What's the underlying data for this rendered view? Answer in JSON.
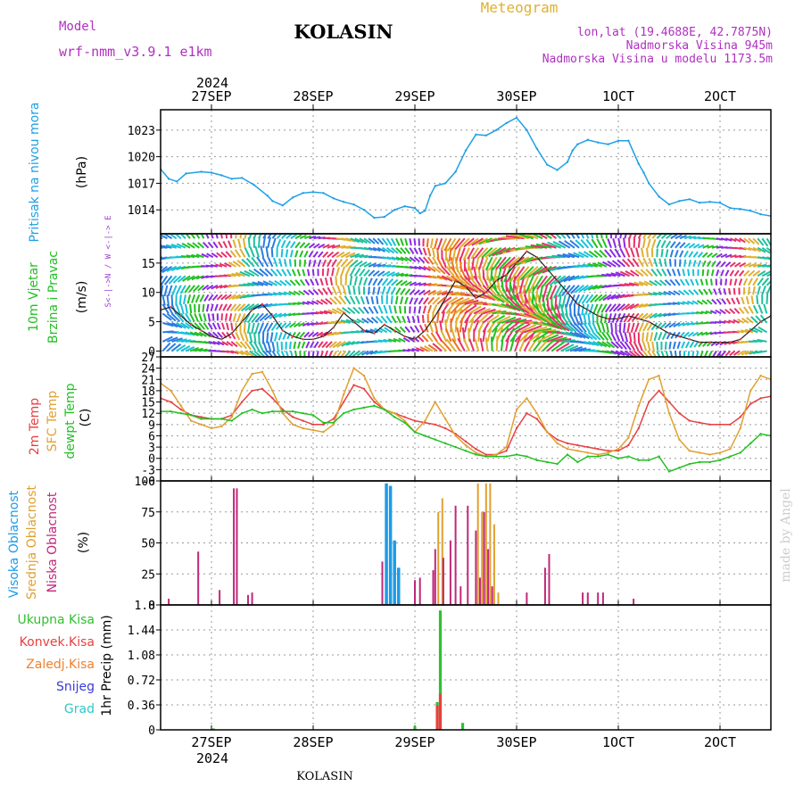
{
  "header": {
    "model_label": "Model",
    "model_name": "wrf-nmm_v3.9.1 e1km",
    "station": "KOLASIN",
    "product": "Meteogram",
    "lonlat": "lon,lat (19.4688E, 42.7875N)",
    "elevation": "Nadmorska Visina 945m",
    "model_elevation": "Nadmorska Visina u modelu 1173.5m",
    "year": "2024",
    "footer_station": "KOLASIN",
    "credit": "made by Angel"
  },
  "colors": {
    "pressure": "#1ea0e6",
    "temp2m": "#e84040",
    "sfc_temp": "#e0a030",
    "dewpoint": "#22c022",
    "cloud_high": "#1e9be6",
    "cloud_mid": "#e0a030",
    "cloud_low": "#c0287a",
    "precip_total": "#30c030",
    "precip_conv": "#e84040",
    "precip_frozen": "#f08030",
    "snow": "#3a3ad8",
    "hail": "#30c8c8",
    "title": "#000000",
    "meta": "#b030c0"
  },
  "chart_data": [
    {
      "type": "line",
      "id": "pressure",
      "ylabel_lines": [
        "Pritisak na nivou mora",
        "(hPa)"
      ],
      "ylim": [
        1011.3,
        1025.3
      ],
      "yticks": [
        1014,
        1017,
        1020,
        1023
      ],
      "grid": true,
      "xlim": [
        -0.5,
        5.5
      ],
      "xticks": [
        0,
        1,
        2,
        3,
        4,
        5
      ],
      "xtick_labels": [
        "27SEP",
        "28SEP",
        "29SEP",
        "30SEP",
        "1OCT",
        "2OCT"
      ],
      "series": [
        {
          "key": "pressure",
          "x": [
            -0.5,
            -0.42,
            -0.34,
            -0.25,
            -0.1,
            0,
            0.1,
            0.2,
            0.3,
            0.42,
            0.55,
            0.6,
            0.7,
            0.8,
            0.9,
            1.0,
            1.1,
            1.2,
            1.3,
            1.4,
            1.5,
            1.6,
            1.7,
            1.8,
            1.9,
            2.0,
            2.05,
            2.1,
            2.15,
            2.2,
            2.3,
            2.4,
            2.5,
            2.6,
            2.7,
            2.8,
            2.9,
            3.0,
            3.1,
            3.2,
            3.3,
            3.4,
            3.5,
            3.55,
            3.6,
            3.7,
            3.8,
            3.9,
            4.0,
            4.1,
            4.2,
            4.25,
            4.3,
            4.4,
            4.5,
            4.6,
            4.7,
            4.8,
            4.9,
            5.0,
            5.1,
            5.2,
            5.3,
            5.4,
            5.5
          ],
          "values": [
            1018.6,
            1017.5,
            1017.2,
            1018.1,
            1018.3,
            1018.2,
            1017.9,
            1017.5,
            1017.6,
            1016.8,
            1015.6,
            1015.0,
            1014.5,
            1015.4,
            1015.9,
            1016.0,
            1015.9,
            1015.3,
            1014.9,
            1014.6,
            1014.0,
            1013.1,
            1013.2,
            1014.0,
            1014.4,
            1014.2,
            1013.6,
            1013.9,
            1015.6,
            1016.7,
            1017.0,
            1018.3,
            1020.7,
            1022.5,
            1022.4,
            1023.0,
            1023.8,
            1024.4,
            1023.0,
            1020.9,
            1019.1,
            1018.5,
            1019.4,
            1020.7,
            1021.4,
            1021.9,
            1021.6,
            1021.4,
            1021.8,
            1021.8,
            1019.2,
            1018.2,
            1017.0,
            1015.5,
            1014.6,
            1015.0,
            1015.2,
            1014.8,
            1014.9,
            1014.8,
            1014.2,
            1014.1,
            1013.9,
            1013.5,
            1013.3
          ]
        }
      ]
    },
    {
      "type": "line",
      "id": "wind",
      "ylabel_lines": [
        "10m Vjetar",
        "Brzina i Pravac",
        "(m/s)"
      ],
      "compass_label": "S<-|->N / W <-|-> E",
      "ylim": [
        -1,
        20
      ],
      "yticks": [
        0,
        5,
        10,
        15
      ],
      "grid": true,
      "xlim": [
        -0.5,
        5.5
      ],
      "series": [
        {
          "key": "wind_speed",
          "x": [
            -0.5,
            -0.4,
            -0.3,
            -0.2,
            -0.1,
            0,
            0.1,
            0.2,
            0.3,
            0.4,
            0.5,
            0.6,
            0.7,
            0.8,
            0.9,
            1.0,
            1.1,
            1.2,
            1.3,
            1.4,
            1.5,
            1.6,
            1.7,
            1.8,
            1.9,
            2.0,
            2.1,
            2.2,
            2.3,
            2.4,
            2.5,
            2.6,
            2.7,
            2.8,
            2.9,
            3.0,
            3.1,
            3.2,
            3.3,
            3.4,
            3.5,
            3.6,
            3.7,
            3.8,
            3.9,
            4.0,
            4.1,
            4.2,
            4.3,
            4.4,
            4.5,
            4.6,
            4.7,
            4.8,
            4.9,
            5.0,
            5.1,
            5.2,
            5.3,
            5.4,
            5.5
          ],
          "values": [
            7.0,
            7.5,
            6.0,
            4.5,
            3.5,
            2.5,
            2.0,
            3.0,
            5.0,
            7.0,
            8.0,
            6.0,
            3.5,
            2.5,
            2.0,
            2.0,
            2.5,
            4.0,
            6.5,
            5.0,
            3.5,
            3.0,
            4.5,
            3.5,
            2.5,
            2.0,
            3.5,
            6.0,
            9.0,
            12.0,
            11.0,
            9.0,
            10.0,
            12.0,
            13.0,
            15.0,
            17.0,
            16.0,
            14.0,
            12.0,
            10.0,
            8.0,
            7.0,
            6.0,
            5.5,
            5.5,
            6.0,
            5.5,
            5.0,
            4.0,
            3.0,
            2.5,
            2.0,
            1.5,
            1.5,
            1.5,
            1.5,
            2.0,
            3.5,
            5.0,
            6.0
          ]
        }
      ]
    },
    {
      "type": "line",
      "id": "temperature",
      "ylabel_lines": [
        "2m Temp",
        "SFC Temp",
        "dewpt Temp",
        "(C)"
      ],
      "ylim": [
        -6,
        27
      ],
      "yticks": [
        -6,
        -3,
        0,
        3,
        6,
        9,
        12,
        15,
        18,
        21,
        24,
        27
      ],
      "grid": true,
      "xlim": [
        -0.5,
        5.5
      ],
      "series": [
        {
          "key": "temp2m",
          "name": "2m Temp",
          "x": [
            -0.5,
            -0.4,
            -0.3,
            -0.2,
            -0.1,
            0,
            0.1,
            0.2,
            0.3,
            0.4,
            0.5,
            0.6,
            0.7,
            0.8,
            0.9,
            1.0,
            1.1,
            1.2,
            1.3,
            1.4,
            1.5,
            1.6,
            1.7,
            1.8,
            1.9,
            2.0,
            2.1,
            2.2,
            2.3,
            2.4,
            2.5,
            2.6,
            2.7,
            2.8,
            2.9,
            3.0,
            3.1,
            3.2,
            3.3,
            3.4,
            3.5,
            3.6,
            3.7,
            3.8,
            3.9,
            4.0,
            4.1,
            4.2,
            4.3,
            4.4,
            4.5,
            4.6,
            4.7,
            4.8,
            4.9,
            5.0,
            5.1,
            5.2,
            5.3,
            5.4,
            5.5
          ],
          "values": [
            16.0,
            15.0,
            13.0,
            11.5,
            11.0,
            10.5,
            10.5,
            11.5,
            15.0,
            18.0,
            18.5,
            16.0,
            13.0,
            11.0,
            10.0,
            9.0,
            9.0,
            10.5,
            15.0,
            19.5,
            18.5,
            15.0,
            13.0,
            12.0,
            11.0,
            10.0,
            9.5,
            9.0,
            8.0,
            6.5,
            4.5,
            2.5,
            1.0,
            1.0,
            2.0,
            8.0,
            12.0,
            10.5,
            7.0,
            5.0,
            4.0,
            3.5,
            3.0,
            2.5,
            2.0,
            2.0,
            3.5,
            8.0,
            15.0,
            18.0,
            15.0,
            12.0,
            10.0,
            9.5,
            9.0,
            9.0,
            9.0,
            11.0,
            14.5,
            16.0,
            16.5
          ]
        },
        {
          "key": "sfc_temp",
          "name": "SFC Temp",
          "x": [
            -0.5,
            -0.4,
            -0.3,
            -0.2,
            -0.1,
            0,
            0.1,
            0.2,
            0.3,
            0.4,
            0.5,
            0.6,
            0.7,
            0.8,
            0.9,
            1.0,
            1.1,
            1.2,
            1.3,
            1.4,
            1.5,
            1.6,
            1.7,
            1.8,
            1.9,
            2.0,
            2.1,
            2.2,
            2.3,
            2.4,
            2.5,
            2.6,
            2.7,
            2.8,
            2.9,
            3.0,
            3.1,
            3.2,
            3.3,
            3.4,
            3.5,
            3.6,
            3.7,
            3.8,
            3.9,
            4.0,
            4.1,
            4.2,
            4.3,
            4.4,
            4.5,
            4.6,
            4.7,
            4.8,
            4.9,
            5.0,
            5.1,
            5.2,
            5.3,
            5.4,
            5.5
          ],
          "values": [
            20.0,
            18.0,
            14.0,
            10.0,
            9.0,
            8.0,
            8.5,
            11.0,
            18.0,
            22.5,
            23.0,
            18.0,
            12.0,
            9.0,
            8.0,
            7.5,
            7.0,
            9.0,
            17.0,
            24.0,
            22.0,
            16.0,
            13.0,
            12.0,
            10.0,
            7.0,
            10.0,
            15.0,
            10.5,
            6.0,
            3.5,
            1.5,
            0.5,
            1.0,
            3.0,
            13.0,
            16.0,
            12.0,
            7.0,
            4.0,
            2.5,
            2.0,
            1.5,
            1.0,
            1.5,
            2.5,
            5.5,
            14.0,
            21.0,
            22.0,
            12.0,
            5.0,
            2.0,
            1.5,
            1.0,
            1.5,
            2.5,
            8.0,
            18.0,
            22.0,
            21.0
          ]
        },
        {
          "key": "dewpoint",
          "name": "dewpt Temp",
          "x": [
            -0.5,
            -0.4,
            -0.3,
            -0.2,
            -0.1,
            0,
            0.1,
            0.2,
            0.3,
            0.4,
            0.5,
            0.6,
            0.7,
            0.8,
            0.9,
            1.0,
            1.1,
            1.2,
            1.3,
            1.4,
            1.5,
            1.6,
            1.7,
            1.8,
            1.9,
            2.0,
            2.1,
            2.2,
            2.3,
            2.4,
            2.5,
            2.6,
            2.7,
            2.8,
            2.9,
            3.0,
            3.1,
            3.2,
            3.3,
            3.4,
            3.5,
            3.6,
            3.7,
            3.8,
            3.9,
            4.0,
            4.1,
            4.2,
            4.3,
            4.4,
            4.5,
            4.6,
            4.7,
            4.8,
            4.9,
            5.0,
            5.1,
            5.2,
            5.3,
            5.4,
            5.5
          ],
          "values": [
            12.5,
            12.5,
            12.0,
            11.5,
            10.5,
            10.5,
            10.5,
            10.0,
            12.0,
            13.0,
            12.0,
            12.5,
            12.5,
            12.5,
            12.0,
            11.5,
            9.5,
            9.5,
            12.0,
            13.0,
            13.5,
            14.0,
            13.0,
            11.0,
            9.5,
            7.0,
            6.0,
            5.0,
            4.0,
            3.0,
            2.0,
            1.0,
            0.5,
            0.5,
            0.5,
            1.0,
            0.5,
            -0.5,
            -1.0,
            -1.5,
            1.0,
            -1.0,
            0.5,
            0.5,
            1.0,
            0.0,
            0.5,
            -0.5,
            -0.5,
            0.5,
            -3.5,
            -2.5,
            -1.5,
            -1.0,
            -1.0,
            -0.5,
            0.5,
            1.5,
            4.0,
            6.5,
            6.0
          ]
        }
      ]
    },
    {
      "type": "bar",
      "id": "clouds",
      "ylabel_lines": [
        "Visoka Oblacnost",
        "Srednja Oblacnost",
        "Niska Oblacnost",
        "(%)"
      ],
      "ylim": [
        0,
        100
      ],
      "yticks": [
        0,
        25,
        50,
        75,
        100
      ],
      "grid": true,
      "xlim": [
        -0.5,
        5.5
      ],
      "series": [
        {
          "key": "cloud_high",
          "name": "Visoka Oblacnost",
          "x": [
            1.72,
            1.76,
            1.8,
            1.84
          ],
          "values": [
            98,
            96,
            52,
            30
          ]
        },
        {
          "key": "cloud_mid",
          "name": "Srednja Oblacnost",
          "x": [
            2.23,
            2.27,
            2.62,
            2.66,
            2.7,
            2.74,
            2.78,
            2.82
          ],
          "values": [
            75,
            86,
            98,
            75,
            98,
            98,
            65,
            10
          ]
        },
        {
          "key": "cloud_low",
          "name": "Niska Oblacnost",
          "x": [
            -0.42,
            -0.13,
            0.08,
            0.22,
            0.25,
            0.36,
            0.4,
            1.68,
            2.0,
            2.05,
            2.18,
            2.2,
            2.28,
            2.35,
            2.4,
            2.45,
            2.52,
            2.6,
            2.64,
            2.68,
            2.72,
            2.76,
            3.1,
            3.28,
            3.32,
            3.65,
            3.7,
            3.8,
            3.85,
            4.15
          ],
          "values": [
            5,
            43,
            12,
            94,
            94,
            8,
            10,
            35,
            20,
            22,
            28,
            45,
            38,
            52,
            80,
            15,
            80,
            60,
            22,
            75,
            45,
            15,
            10,
            30,
            41,
            10,
            10,
            10,
            10,
            5
          ]
        }
      ]
    },
    {
      "type": "bar",
      "id": "precip",
      "ylabel_lines": [
        "1hr Precip (mm)"
      ],
      "legend": [
        "Ukupna Kisa",
        "Konvek.Kisa",
        "Zaledj.Kisa",
        "Snijeg",
        "Grad"
      ],
      "ylim": [
        0,
        1.8
      ],
      "yticks": [
        0,
        0.36,
        0.72,
        1.08,
        1.44,
        1.8
      ],
      "grid": true,
      "xlim": [
        -0.5,
        5.5
      ],
      "series": [
        {
          "key": "precip_total",
          "name": "Ukupna Kisa",
          "x": [
            0.02,
            2.0,
            2.22,
            2.25,
            2.47
          ],
          "values": [
            0.02,
            0.05,
            0.4,
            1.72,
            0.1
          ]
        },
        {
          "key": "precip_conv",
          "name": "Konvek.Kisa",
          "x": [
            2.22,
            2.25
          ],
          "values": [
            0.35,
            0.52
          ]
        }
      ]
    }
  ]
}
